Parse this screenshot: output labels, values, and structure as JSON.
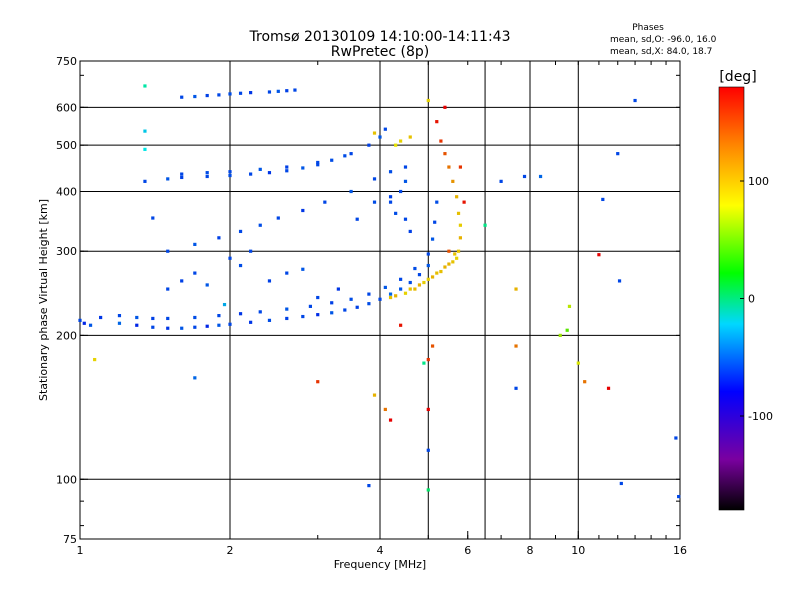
{
  "chart_data": {
    "type": "scatter",
    "title": "Tromsø 20130109 14:10:00-14:11:43",
    "subtitle": "RwPretec (8p)",
    "xlabel": "Frequency [MHz]",
    "ylabel": "Stationary phase Virtual Height [km]",
    "x_scale": "log",
    "y_scale": "log",
    "xlim": [
      1,
      16
    ],
    "ylim": [
      75,
      750
    ],
    "x_ticks": [
      1,
      2,
      4,
      6,
      8,
      10,
      16
    ],
    "y_ticks": [
      75,
      100,
      200,
      300,
      400,
      500,
      600,
      750
    ],
    "x_grid": [
      2,
      4,
      5,
      6.5,
      8,
      10
    ],
    "y_grid": [
      100,
      200,
      300,
      400,
      500,
      600
    ],
    "info": {
      "heading": "Phases",
      "line1": "mean, sd,O: -96.0, 16.0",
      "line2": "mean, sd,X:  84.0, 18.7"
    },
    "colorbar": {
      "unit": "[deg]",
      "range": [
        -180,
        180
      ],
      "ticks": [
        100,
        0,
        -100
      ]
    },
    "series": [
      {
        "points": [
          [
            1.0,
            215,
            -110
          ],
          [
            1.02,
            212,
            -120
          ],
          [
            1.05,
            210,
            -105
          ],
          [
            1.1,
            218,
            -115
          ],
          [
            1.2,
            212,
            -100
          ],
          [
            1.3,
            210,
            -120
          ],
          [
            1.4,
            208,
            -110
          ],
          [
            1.5,
            207,
            -115
          ],
          [
            1.6,
            207,
            -105
          ],
          [
            1.7,
            208,
            -110
          ],
          [
            1.8,
            209,
            -120
          ],
          [
            1.9,
            210,
            -105
          ],
          [
            2.0,
            211,
            -110
          ],
          [
            2.2,
            213,
            -115
          ],
          [
            2.4,
            215,
            -108
          ],
          [
            2.6,
            217,
            -112
          ],
          [
            2.8,
            219,
            -110
          ],
          [
            3.0,
            221,
            -118
          ],
          [
            3.2,
            223,
            -105
          ],
          [
            3.4,
            226,
            -110
          ],
          [
            3.6,
            229,
            -112
          ],
          [
            3.8,
            233,
            -108
          ],
          [
            4.0,
            238,
            -110
          ],
          [
            4.2,
            244,
            -100
          ],
          [
            4.4,
            250,
            -105
          ],
          [
            4.6,
            258,
            -108
          ],
          [
            4.8,
            268,
            -110
          ],
          [
            5.0,
            280,
            -105
          ],
          [
            1.2,
            220,
            -110
          ],
          [
            1.3,
            218,
            -105
          ],
          [
            1.4,
            217,
            -112
          ],
          [
            1.5,
            217,
            -110
          ],
          [
            1.7,
            218,
            -108
          ],
          [
            1.9,
            220,
            -110
          ],
          [
            2.1,
            222,
            -115
          ],
          [
            2.3,
            224,
            -110
          ],
          [
            2.6,
            227,
            -105
          ],
          [
            2.9,
            230,
            -110
          ],
          [
            3.2,
            234,
            -112
          ],
          [
            3.5,
            238,
            -108
          ],
          [
            3.8,
            244,
            -110
          ],
          [
            4.1,
            252,
            -105
          ],
          [
            4.4,
            262,
            -110
          ],
          [
            4.7,
            276,
            -108
          ],
          [
            5.0,
            296,
            -110
          ],
          [
            5.1,
            318,
            -105
          ],
          [
            5.15,
            345,
            -110
          ],
          [
            5.2,
            380,
            -108
          ],
          [
            1.5,
            300,
            -110
          ],
          [
            1.7,
            310,
            -105
          ],
          [
            1.9,
            320,
            -112
          ],
          [
            2.1,
            330,
            -110
          ],
          [
            2.3,
            340,
            -108
          ],
          [
            2.5,
            352,
            -110
          ],
          [
            2.8,
            365,
            -115
          ],
          [
            3.1,
            380,
            -110
          ],
          [
            3.5,
            400,
            -105
          ],
          [
            3.9,
            425,
            -110
          ],
          [
            4.2,
            440,
            -108
          ],
          [
            4.5,
            450,
            -110
          ],
          [
            1.35,
            420,
            -110
          ],
          [
            1.5,
            425,
            -105
          ],
          [
            1.6,
            428,
            -112
          ],
          [
            1.8,
            430,
            -110
          ],
          [
            2.0,
            432,
            -108
          ],
          [
            2.2,
            435,
            -110
          ],
          [
            2.4,
            438,
            -115
          ],
          [
            2.6,
            442,
            -110
          ],
          [
            2.8,
            448,
            -105
          ],
          [
            3.0,
            455,
            -110
          ],
          [
            3.2,
            465,
            -108
          ],
          [
            3.5,
            480,
            -110
          ],
          [
            3.8,
            500,
            -112
          ],
          [
            4.0,
            520,
            -105
          ],
          [
            4.1,
            540,
            -110
          ],
          [
            1.6,
            435,
            -110
          ],
          [
            1.8,
            438,
            -108
          ],
          [
            2.0,
            440,
            -110
          ],
          [
            2.3,
            445,
            -105
          ],
          [
            2.6,
            450,
            -112
          ],
          [
            3.0,
            460,
            -110
          ],
          [
            3.4,
            475,
            -108
          ],
          [
            1.6,
            630,
            -110
          ],
          [
            1.7,
            632,
            -105
          ],
          [
            1.8,
            635,
            -112
          ],
          [
            1.9,
            637,
            -110
          ],
          [
            2.0,
            640,
            -108
          ],
          [
            2.1,
            642,
            -110
          ],
          [
            2.2,
            644,
            -115
          ],
          [
            2.4,
            646,
            -110
          ],
          [
            2.5,
            648,
            -105
          ],
          [
            2.6,
            650,
            -112
          ],
          [
            2.7,
            652,
            -110
          ],
          [
            1.5,
            250,
            -110
          ],
          [
            1.6,
            260,
            -112
          ],
          [
            1.7,
            270,
            -110
          ],
          [
            1.8,
            255,
            -105
          ],
          [
            2.0,
            290,
            -110
          ],
          [
            2.1,
            280,
            -108
          ],
          [
            2.2,
            300,
            -110
          ],
          [
            2.4,
            260,
            -112
          ],
          [
            2.6,
            270,
            -110
          ],
          [
            2.8,
            275,
            -105
          ],
          [
            3.0,
            240,
            -110
          ],
          [
            3.3,
            250,
            -115
          ],
          [
            3.6,
            350,
            -110
          ],
          [
            3.9,
            380,
            -108
          ],
          [
            4.2,
            390,
            -112
          ],
          [
            4.2,
            380,
            -110
          ],
          [
            4.3,
            360,
            -108
          ],
          [
            4.4,
            400,
            -110
          ],
          [
            4.5,
            420,
            -105
          ],
          [
            4.5,
            350,
            -110
          ],
          [
            4.6,
            330,
            -112
          ]
        ]
      },
      {
        "points": [
          [
            4.2,
            240,
            95
          ],
          [
            4.3,
            242,
            100
          ],
          [
            4.5,
            245,
            90
          ],
          [
            4.6,
            250,
            95
          ],
          [
            4.8,
            255,
            100
          ],
          [
            5.0,
            262,
            92
          ],
          [
            5.2,
            270,
            96
          ],
          [
            5.4,
            278,
            100
          ],
          [
            5.6,
            285,
            95
          ],
          [
            5.7,
            290,
            90
          ],
          [
            5.75,
            300,
            95
          ],
          [
            5.8,
            320,
            100
          ],
          [
            5.8,
            340,
            92
          ],
          [
            5.75,
            360,
            96
          ],
          [
            5.7,
            390,
            100
          ],
          [
            5.6,
            420,
            110
          ],
          [
            5.5,
            450,
            120
          ],
          [
            5.4,
            480,
            130
          ],
          [
            5.3,
            510,
            140
          ],
          [
            5.2,
            560,
            150
          ],
          [
            5.4,
            600,
            160
          ],
          [
            4.7,
            250,
            98
          ],
          [
            4.9,
            258,
            92
          ],
          [
            5.1,
            265,
            100
          ],
          [
            5.3,
            272,
            96
          ],
          [
            5.5,
            282,
            100
          ],
          [
            5.65,
            296,
            95
          ],
          [
            4.3,
            500,
            85
          ],
          [
            4.4,
            510,
            90
          ],
          [
            4.6,
            520,
            95
          ],
          [
            3.9,
            530,
            95
          ],
          [
            5.0,
            620,
            90
          ],
          [
            5.8,
            450,
            140
          ],
          [
            5.9,
            380,
            150
          ],
          [
            5.5,
            300,
            130
          ]
        ]
      },
      {
        "points": [
          [
            1.35,
            665,
            -40
          ],
          [
            1.35,
            535,
            -70
          ],
          [
            1.35,
            490,
            -60
          ],
          [
            1.4,
            352,
            -110
          ],
          [
            1.07,
            178,
            90
          ],
          [
            1.7,
            163,
            -100
          ],
          [
            1.95,
            232,
            -80
          ],
          [
            3.0,
            160,
            140
          ],
          [
            3.9,
            150,
            100
          ],
          [
            4.1,
            140,
            120
          ],
          [
            4.2,
            133,
            160
          ],
          [
            4.4,
            210,
            150
          ],
          [
            4.9,
            175,
            -30
          ],
          [
            5.0,
            140,
            170
          ],
          [
            5.0,
            115,
            -110
          ],
          [
            5.0,
            95,
            -20
          ],
          [
            5.1,
            190,
            130
          ],
          [
            6.5,
            340,
            -30
          ],
          [
            7.0,
            420,
            -110
          ],
          [
            7.5,
            250,
            100
          ],
          [
            7.8,
            430,
            -110
          ],
          [
            8.4,
            430,
            -100
          ],
          [
            9.5,
            205,
            40
          ],
          [
            10.0,
            175,
            80
          ],
          [
            10.3,
            160,
            120
          ],
          [
            11.0,
            295,
            160
          ],
          [
            11.2,
            385,
            -110
          ],
          [
            11.5,
            155,
            160
          ],
          [
            12.0,
            480,
            -110
          ],
          [
            12.1,
            260,
            -110
          ],
          [
            12.2,
            98,
            -110
          ],
          [
            13.0,
            620,
            -110
          ],
          [
            15.7,
            122,
            -110
          ],
          [
            15.9,
            92,
            -110
          ],
          [
            7.5,
            155,
            -110
          ],
          [
            7.5,
            190,
            120
          ],
          [
            3.8,
            97,
            -110
          ],
          [
            5.0,
            178,
            140
          ],
          [
            9.2,
            200,
            60
          ],
          [
            9.6,
            230,
            70
          ]
        ]
      }
    ]
  }
}
